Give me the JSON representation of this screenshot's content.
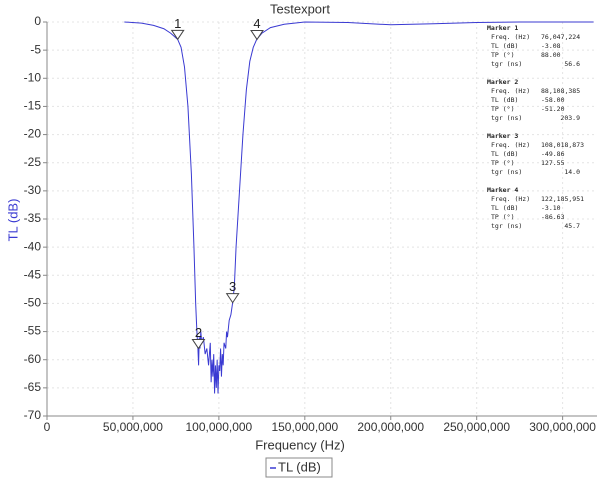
{
  "chart_data": {
    "type": "line",
    "title": "Testexport",
    "x_label": "Frequency (Hz)",
    "y_label": "TL (dB)",
    "x": [
      45000000,
      55000000,
      62000000,
      68000000,
      72000000,
      76000000,
      78000000,
      80000000,
      82000000,
      84000000,
      85500000,
      86500000,
      87200000,
      87800000,
      88200000,
      88600000,
      89000000,
      89500000,
      90000000,
      91000000,
      92000000,
      93000000,
      94000000,
      95000000,
      95500000,
      96000000,
      96500000,
      97000000,
      97500000,
      98000000,
      98500000,
      99000000,
      99500000,
      100000000,
      100500000,
      101000000,
      101500000,
      102000000,
      102500000,
      103000000,
      104000000,
      104500000,
      105000000,
      106000000,
      107000000,
      108000000,
      109000000,
      110000000,
      112000000,
      114000000,
      116000000,
      118000000,
      120000000,
      122000000,
      125000000,
      130000000,
      138000000,
      150000000,
      175000000,
      200000000,
      225000000,
      250000000,
      275000000,
      300000000,
      318000000
    ],
    "series": [
      {
        "name": "TL (dB)",
        "color": "#3a3ad2",
        "values": [
          0,
          -0.2,
          -0.6,
          -1.2,
          -2,
          -3.08,
          -4.5,
          -8,
          -15,
          -27,
          -40,
          -50,
          -55,
          -58,
          -61,
          -56,
          -58,
          -55,
          -57,
          -56,
          -59,
          -58,
          -61,
          -57,
          -64,
          -60,
          -63,
          -59,
          -66,
          -61,
          -65,
          -60,
          -66,
          -61,
          -62,
          -58,
          -63,
          -59,
          -61,
          -57,
          -58,
          -55,
          -56,
          -53,
          -52,
          -49.86,
          -47,
          -40,
          -30,
          -20,
          -12,
          -7,
          -4.5,
          -3.1,
          -2,
          -1,
          -0.4,
          0,
          -0.1,
          -0.5,
          -0.3,
          -0.1,
          0,
          0,
          0
        ]
      }
    ],
    "xlim": [
      0,
      320000000
    ],
    "xticks": [
      0,
      {
        "value": 50000000,
        "label": "50,000,000"
      },
      {
        "value": 100000000,
        "label": "100,000,000"
      },
      {
        "value": 150000000,
        "label": "150,000,000"
      },
      {
        "value": 200000000,
        "label": "200,000,000"
      },
      {
        "value": 250000000,
        "label": "250,000,000"
      },
      {
        "value": 300000000,
        "label": "300,000,000"
      }
    ],
    "ylim": [
      -70,
      0
    ],
    "yticks": [
      0,
      -5,
      -10,
      -15,
      -20,
      -25,
      -30,
      -35,
      -40,
      -45,
      -50,
      -55,
      -60,
      -65,
      -70
    ],
    "grid": true,
    "markers": [
      {
        "name": "Marker 1",
        "label": "1",
        "x": 76047224,
        "y": -3.08,
        "rows": [
          {
            "name": "Freq. (Hz)",
            "value": "76,047,224"
          },
          {
            "name": "TL (dB)",
            "value": "-3.08"
          },
          {
            "name": "TP (°)",
            "value": "88.00"
          },
          {
            "name": "tgr (ns)",
            "value": "56.6"
          }
        ]
      },
      {
        "name": "Marker 2",
        "label": "2",
        "x": 88108385,
        "y": -58,
        "rows": [
          {
            "name": "Freq. (Hz)",
            "value": "88,108,385"
          },
          {
            "name": "TL (dB)",
            "value": "-58.00"
          },
          {
            "name": "TP (°)",
            "value": "-51.20"
          },
          {
            "name": "tgr (ns)",
            "value": "203.9"
          }
        ]
      },
      {
        "name": "Marker 3",
        "label": "3",
        "x": 108018873,
        "y": -49.86,
        "rows": [
          {
            "name": "Freq. (Hz)",
            "value": "108,018,873"
          },
          {
            "name": "TL (dB)",
            "value": "-49.86"
          },
          {
            "name": "TP (°)",
            "value": "127.55"
          },
          {
            "name": "tgr (ns)",
            "value": "14.0"
          }
        ]
      },
      {
        "name": "Marker 4",
        "label": "4",
        "x": 122185951,
        "y": -3.1,
        "rows": [
          {
            "name": "Freq. (Hz)",
            "value": "122,185,951"
          },
          {
            "name": "TL (dB)",
            "value": "-3.10"
          },
          {
            "name": "TP (°)",
            "value": "-86.63"
          },
          {
            "name": "tgr (ns)",
            "value": "45.7"
          }
        ]
      }
    ]
  }
}
